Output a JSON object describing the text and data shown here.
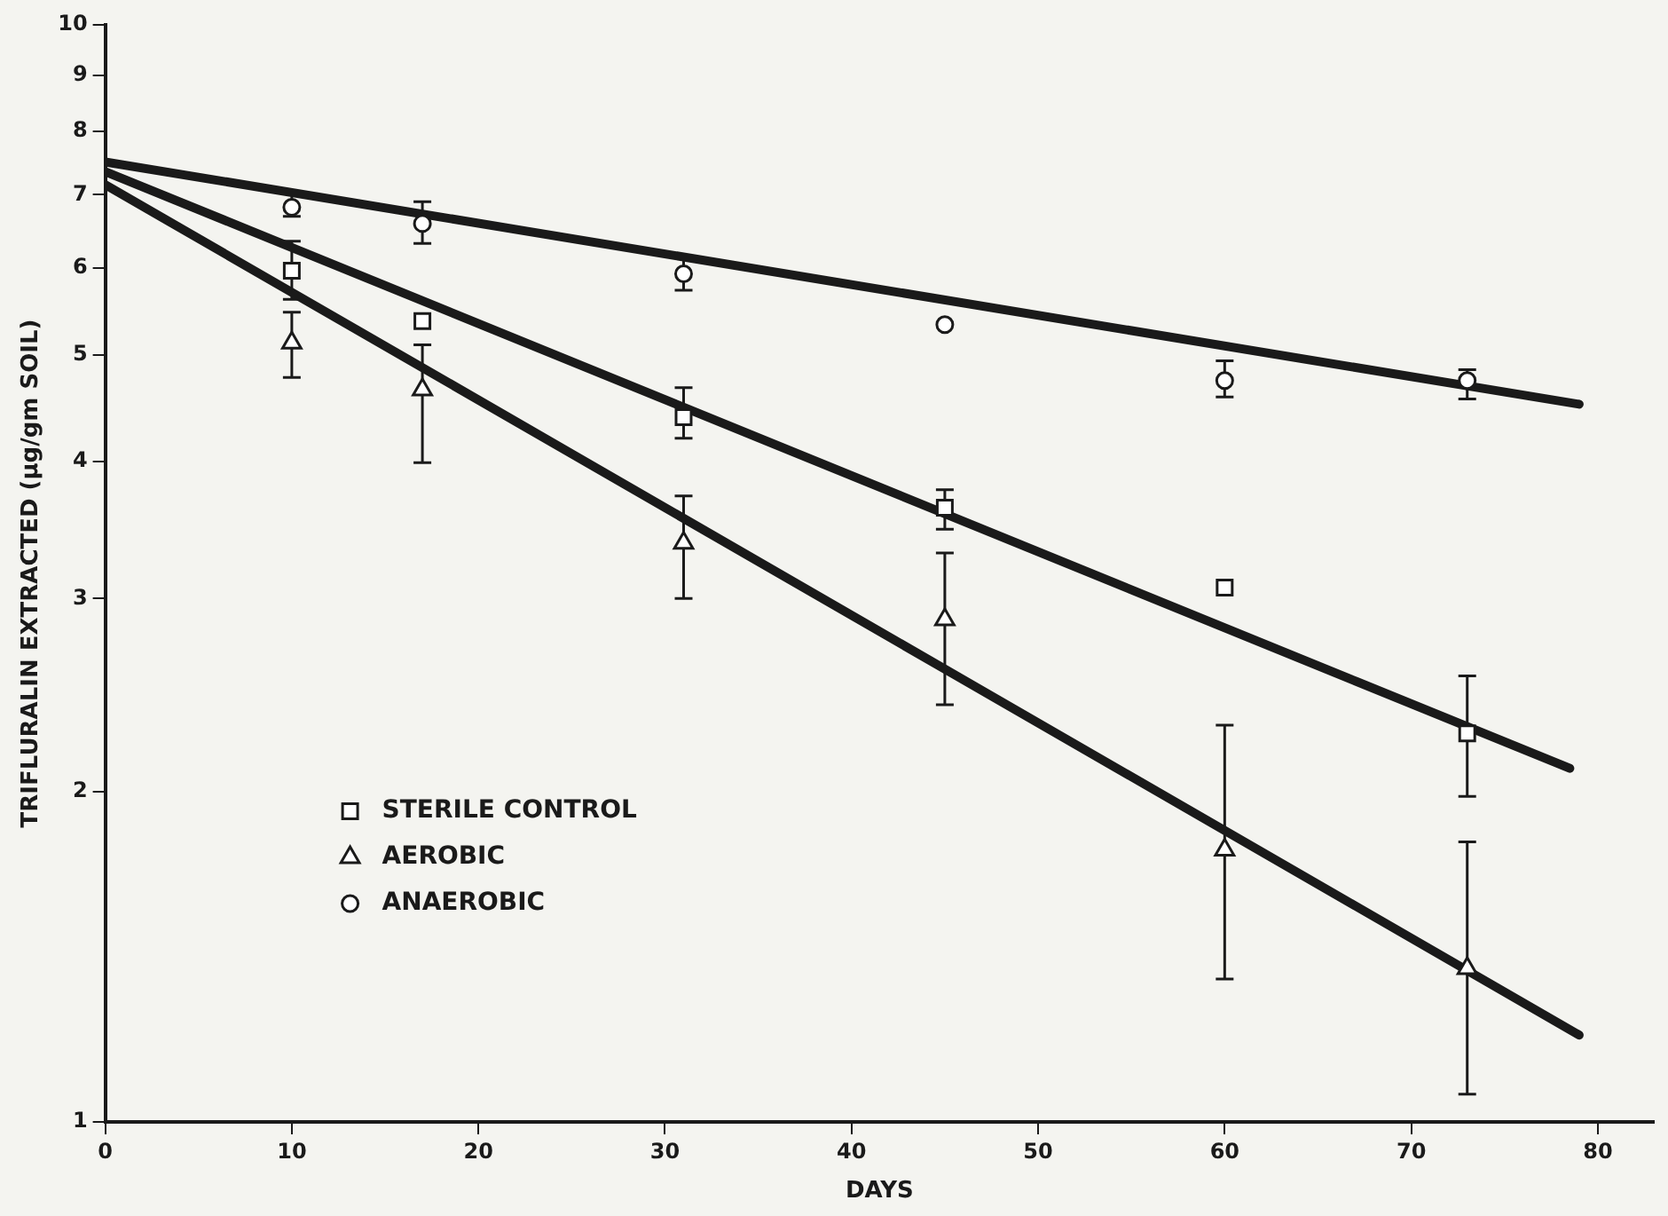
{
  "chart_data": {
    "type": "scatter",
    "xlabel": "DAYS",
    "ylabel": "TRIFLURALIN EXTRACTED (µg/gm SOIL)",
    "log": "y",
    "xlim": [
      0,
      83
    ],
    "ylim": [
      1,
      10
    ],
    "xticks": [
      0,
      10,
      20,
      30,
      40,
      50,
      60,
      70,
      80
    ],
    "yticks": [
      1,
      2,
      3,
      4,
      5,
      6,
      7,
      8,
      9,
      10
    ],
    "grid": false,
    "legend": "bottom left",
    "x": [
      10,
      17,
      31,
      45,
      60,
      73
    ],
    "series": [
      {
        "name": "STERILE CONTROL",
        "color": "#1a1a1a",
        "marker": "square",
        "values": [
          5.97,
          5.37,
          4.39,
          3.63,
          3.07,
          2.26
        ],
        "errors": [
          [
            5.62,
            6.35
          ],
          null,
          [
            4.2,
            4.67
          ],
          [
            3.47,
            3.77
          ],
          null,
          [
            1.98,
            2.55
          ]
        ]
      },
      {
        "name": "AEROBIC",
        "color": "#1a1a1a",
        "marker": "triangle",
        "values": [
          5.13,
          4.65,
          3.37,
          2.87,
          1.77,
          1.38
        ],
        "errors": [
          [
            4.77,
            5.47
          ],
          [
            3.99,
            5.11
          ],
          [
            3.0,
            3.72
          ],
          [
            2.4,
            3.3
          ],
          [
            1.35,
            2.3
          ],
          [
            1.06,
            1.8
          ]
        ]
      },
      {
        "name": "ANAEROBIC",
        "color": "#1a1a1a",
        "marker": "circle",
        "values": [
          6.82,
          6.59,
          5.93,
          5.33,
          4.74,
          4.74
        ],
        "errors": [
          [
            6.69,
            7.03
          ],
          [
            6.32,
            6.9
          ],
          [
            5.73,
            6.13
          ],
          null,
          [
            4.58,
            4.94
          ],
          [
            4.56,
            4.85
          ]
        ]
      },
      {
        "type": "line",
        "color": "#1a1a1a",
        "marker": "none",
        "x": [
          0,
          78.5
        ],
        "values": [
          7.35,
          2.1
        ]
      },
      {
        "type": "line",
        "color": "#1a1a1a",
        "marker": "none",
        "x": [
          0,
          79
        ],
        "values": [
          7.15,
          1.2
        ]
      },
      {
        "type": "line",
        "color": "#1a1a1a",
        "marker": "none",
        "x": [
          0,
          79
        ],
        "values": [
          7.5,
          4.51
        ]
      }
    ]
  }
}
